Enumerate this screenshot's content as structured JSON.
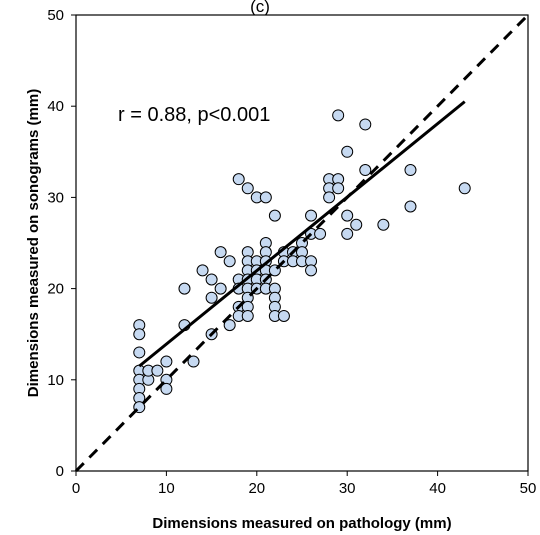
{
  "chart_data": {
    "type": "scatter",
    "title": "(c)",
    "xlabel": "Dimensions measured on pathology (mm)",
    "ylabel": "Dimensions measured on sonograms (mm)",
    "xlim": [
      0,
      50
    ],
    "ylim": [
      0,
      50
    ],
    "xticks": [
      "0",
      "10",
      "20",
      "30",
      "40",
      "50"
    ],
    "yticks": [
      "0",
      "10",
      "20",
      "30",
      "40",
      "50"
    ],
    "grid": false,
    "annotation": "r = 0.88, p<0.001",
    "marker_fill": "#c6d9f1",
    "marker_edge": "#000000",
    "points": [
      [
        7,
        16
      ],
      [
        7,
        15
      ],
      [
        7,
        13
      ],
      [
        7,
        11
      ],
      [
        7,
        10
      ],
      [
        7,
        9
      ],
      [
        7,
        8
      ],
      [
        7,
        7
      ],
      [
        8,
        10
      ],
      [
        8,
        11
      ],
      [
        9,
        11
      ],
      [
        10,
        12
      ],
      [
        10,
        10
      ],
      [
        10,
        9
      ],
      [
        12,
        20
      ],
      [
        12,
        16
      ],
      [
        13,
        12
      ],
      [
        14,
        22
      ],
      [
        15,
        21
      ],
      [
        15,
        19
      ],
      [
        15,
        15
      ],
      [
        16,
        24
      ],
      [
        16,
        20
      ],
      [
        17,
        23
      ],
      [
        17,
        16
      ],
      [
        18,
        32
      ],
      [
        18,
        21
      ],
      [
        18,
        20
      ],
      [
        18,
        18
      ],
      [
        18,
        17
      ],
      [
        19,
        31
      ],
      [
        19,
        24
      ],
      [
        19,
        23
      ],
      [
        19,
        22
      ],
      [
        19,
        21
      ],
      [
        19,
        20
      ],
      [
        19,
        19
      ],
      [
        19,
        18
      ],
      [
        19,
        17
      ],
      [
        20,
        30
      ],
      [
        20,
        23
      ],
      [
        20,
        22
      ],
      [
        20,
        21
      ],
      [
        20,
        20
      ],
      [
        21,
        30
      ],
      [
        21,
        25
      ],
      [
        21,
        24
      ],
      [
        21,
        23
      ],
      [
        21,
        22
      ],
      [
        21,
        21
      ],
      [
        21,
        20
      ],
      [
        22,
        28
      ],
      [
        22,
        22
      ],
      [
        22,
        20
      ],
      [
        22,
        19
      ],
      [
        22,
        18
      ],
      [
        22,
        17
      ],
      [
        23,
        24
      ],
      [
        23,
        23
      ],
      [
        23,
        17
      ],
      [
        24,
        24
      ],
      [
        24,
        23
      ],
      [
        25,
        25
      ],
      [
        25,
        24
      ],
      [
        25,
        23
      ],
      [
        26,
        28
      ],
      [
        26,
        26
      ],
      [
        26,
        23
      ],
      [
        26,
        22
      ],
      [
        27,
        26
      ],
      [
        28,
        32
      ],
      [
        28,
        31
      ],
      [
        28,
        30
      ],
      [
        29,
        39
      ],
      [
        29,
        32
      ],
      [
        29,
        31
      ],
      [
        30,
        35
      ],
      [
        30,
        28
      ],
      [
        30,
        26
      ],
      [
        31,
        27
      ],
      [
        32,
        38
      ],
      [
        32,
        33
      ],
      [
        34,
        27
      ],
      [
        37,
        33
      ],
      [
        37,
        29
      ],
      [
        43,
        31
      ]
    ],
    "lines": [
      {
        "style": "solid",
        "from": [
          7,
          11.5
        ],
        "to": [
          43,
          40.5
        ]
      },
      {
        "style": "dashed",
        "from": [
          0,
          0
        ],
        "to": [
          50,
          50
        ]
      }
    ]
  }
}
